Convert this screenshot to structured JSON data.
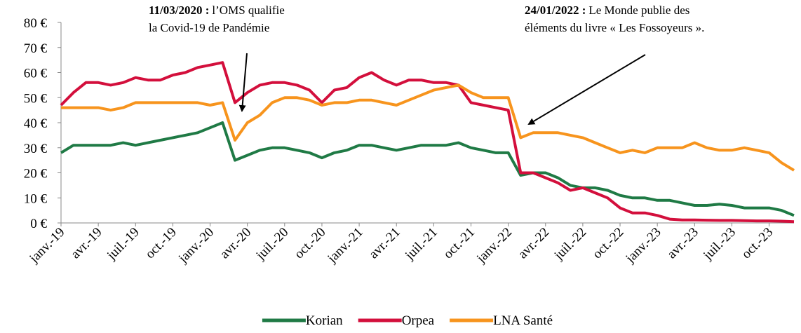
{
  "chart_data": {
    "type": "line",
    "categories": [
      "janv.-19",
      null,
      null,
      "avr.-19",
      null,
      null,
      "juil.-19",
      null,
      null,
      "oct.-19",
      null,
      null,
      "janv.-20",
      null,
      null,
      "avr.-20",
      null,
      null,
      "juil.-20",
      null,
      null,
      "oct.-20",
      null,
      null,
      "janv.-21",
      null,
      null,
      "avr.-21",
      null,
      null,
      "juil.-21",
      null,
      null,
      "oct.-21",
      null,
      null,
      "janv.-22",
      null,
      null,
      "avr.-22",
      null,
      null,
      "juil.-22",
      null,
      null,
      "oct.-22",
      null,
      null,
      "janv.-23",
      null,
      null,
      "avr.-23",
      null,
      null,
      "juil.-23",
      null,
      null,
      "oct.-23",
      null,
      null
    ],
    "series": [
      {
        "name": "Korian",
        "color": "#1f7a45",
        "values": [
          28,
          31,
          31,
          31,
          31,
          32,
          31,
          32,
          33,
          34,
          35,
          36,
          38,
          40,
          25,
          27,
          29,
          30,
          30,
          29,
          28,
          26,
          28,
          29,
          31,
          31,
          30,
          29,
          30,
          31,
          31,
          31,
          32,
          30,
          29,
          28,
          28,
          19,
          20,
          20,
          18,
          15,
          14,
          14,
          13,
          11,
          10,
          10,
          9,
          9,
          8,
          7,
          7,
          7.5,
          7,
          6,
          6,
          6,
          5,
          3
        ]
      },
      {
        "name": "Orpea",
        "color": "#d30f3c",
        "values": [
          47,
          52,
          56,
          56,
          55,
          56,
          58,
          57,
          57,
          59,
          60,
          62,
          63,
          64,
          48,
          52,
          55,
          56,
          56,
          55,
          53,
          48,
          53,
          54,
          58,
          60,
          57,
          55,
          57,
          57,
          56,
          56,
          55,
          48,
          47,
          46,
          45,
          20,
          20,
          18,
          16,
          13,
          14,
          12,
          10,
          6,
          4,
          4,
          3,
          1.5,
          1.2,
          1.2,
          1.1,
          1,
          1,
          0.9,
          0.8,
          0.8,
          0.7,
          0.5
        ]
      },
      {
        "name": "LNA Santé",
        "color": "#f7941d",
        "values": [
          46,
          46,
          46,
          46,
          45,
          46,
          48,
          48,
          48,
          48,
          48,
          48,
          47,
          48,
          33,
          40,
          43,
          48,
          50,
          50,
          49,
          47,
          48,
          48,
          49,
          49,
          48,
          47,
          49,
          51,
          53,
          54,
          55,
          52,
          50,
          50,
          50,
          34,
          36,
          36,
          36,
          35,
          34,
          32,
          30,
          28,
          29,
          28,
          30,
          30,
          30,
          32,
          30,
          29,
          29,
          30,
          29,
          28,
          24,
          21
        ]
      }
    ],
    "ylim": [
      0,
      80
    ],
    "yticks": [
      {
        "value": 0,
        "label": "0 €"
      },
      {
        "value": 10,
        "label": "10 €"
      },
      {
        "value": 20,
        "label": "20 €"
      },
      {
        "value": 30,
        "label": "30 €"
      },
      {
        "value": 40,
        "label": "40 €"
      },
      {
        "value": 50,
        "label": "50 €"
      },
      {
        "value": 60,
        "label": "60 €"
      },
      {
        "value": 70,
        "label": "70 €"
      },
      {
        "value": 80,
        "label": "80 €"
      }
    ],
    "legend": "bottom",
    "annotations": [
      {
        "date": "11/03/2020 :",
        "text": [
          "l’OMS qualifie",
          "la Covid-19 de Pandémie"
        ]
      },
      {
        "date": "24/01/2022 :",
        "text": [
          "Le Monde publie des",
          "éléments du livre « Les Fossoyeurs »."
        ]
      }
    ]
  }
}
